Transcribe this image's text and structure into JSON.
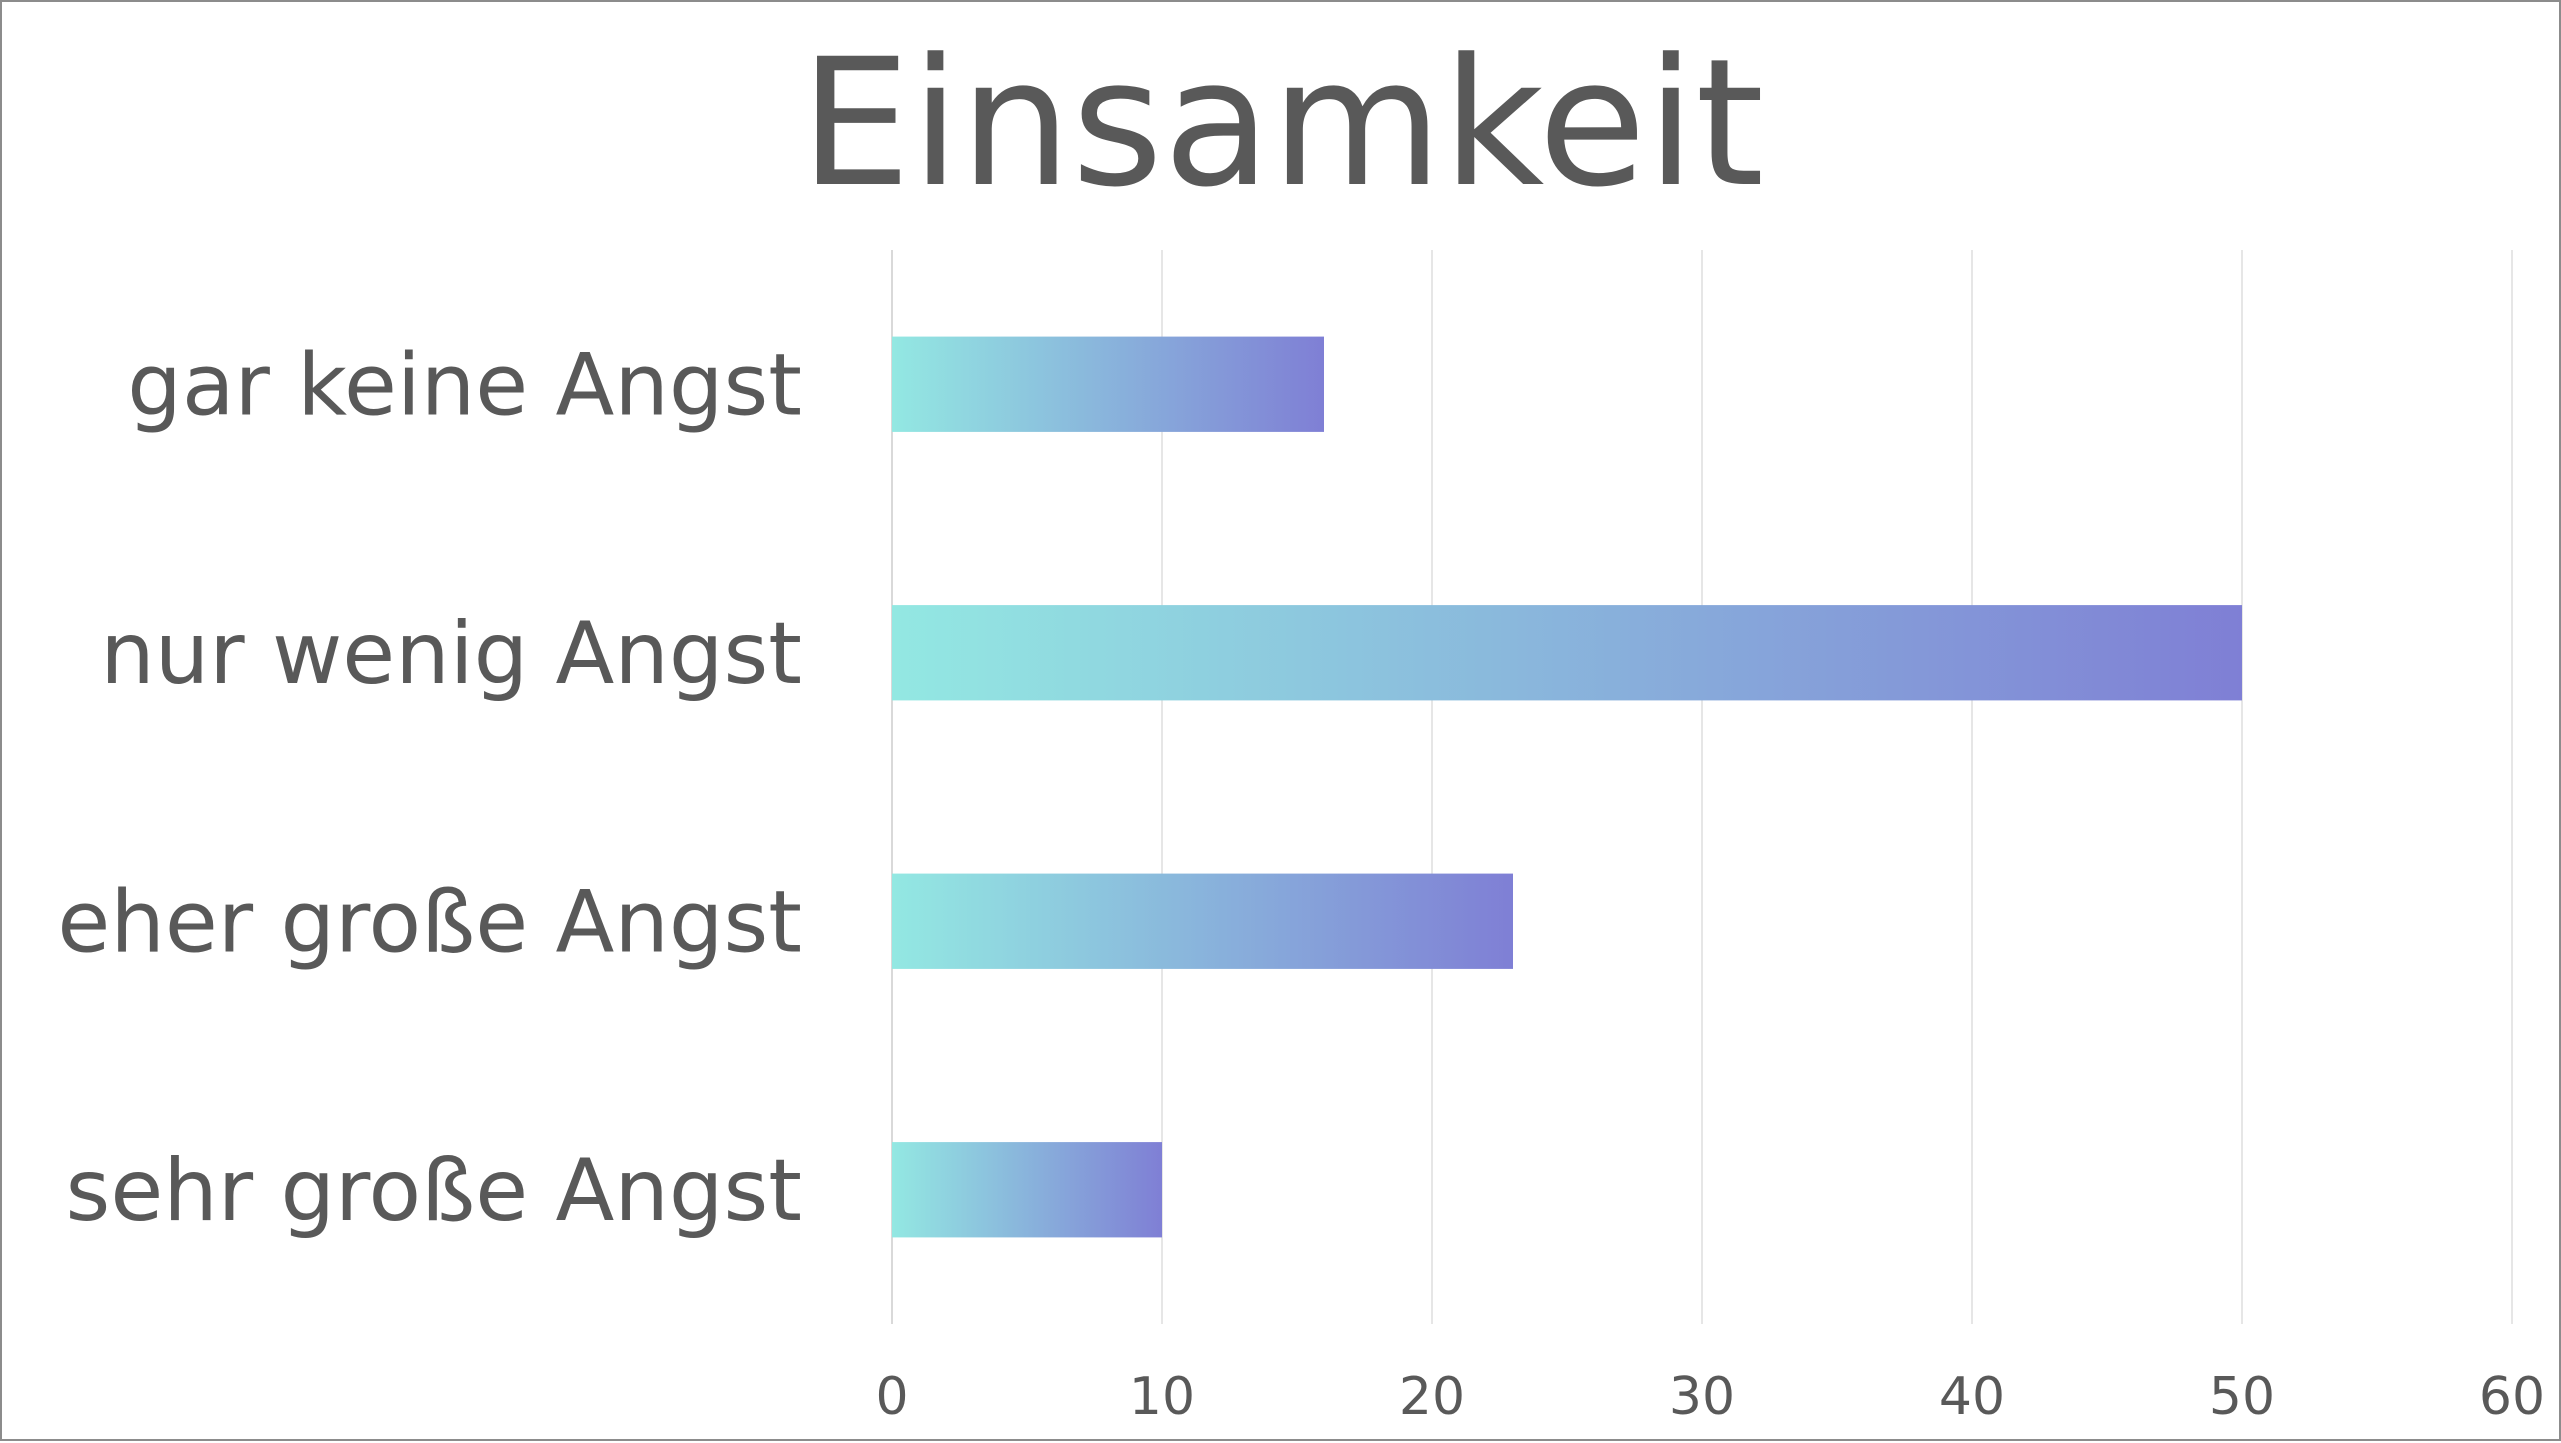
{
  "chart_data": {
    "type": "bar",
    "orientation": "horizontal",
    "title": "Einsamkeit",
    "categories": [
      "gar keine Angst",
      "nur wenig Angst",
      "eher große Angst",
      "sehr große Angst"
    ],
    "values": [
      16,
      50,
      23,
      10
    ],
    "xlim": [
      0,
      60
    ],
    "x_ticks": [
      "0",
      "10",
      "20",
      "30",
      "40",
      "50",
      "60"
    ],
    "xlabel": "",
    "ylabel": "",
    "grid": "vertical",
    "legend": "none",
    "colors": {
      "bar_gradient_start": "#93e8e2",
      "bar_gradient_end": "#7f7fd5",
      "text": "#595959",
      "grid": "#e6e6e6"
    }
  }
}
